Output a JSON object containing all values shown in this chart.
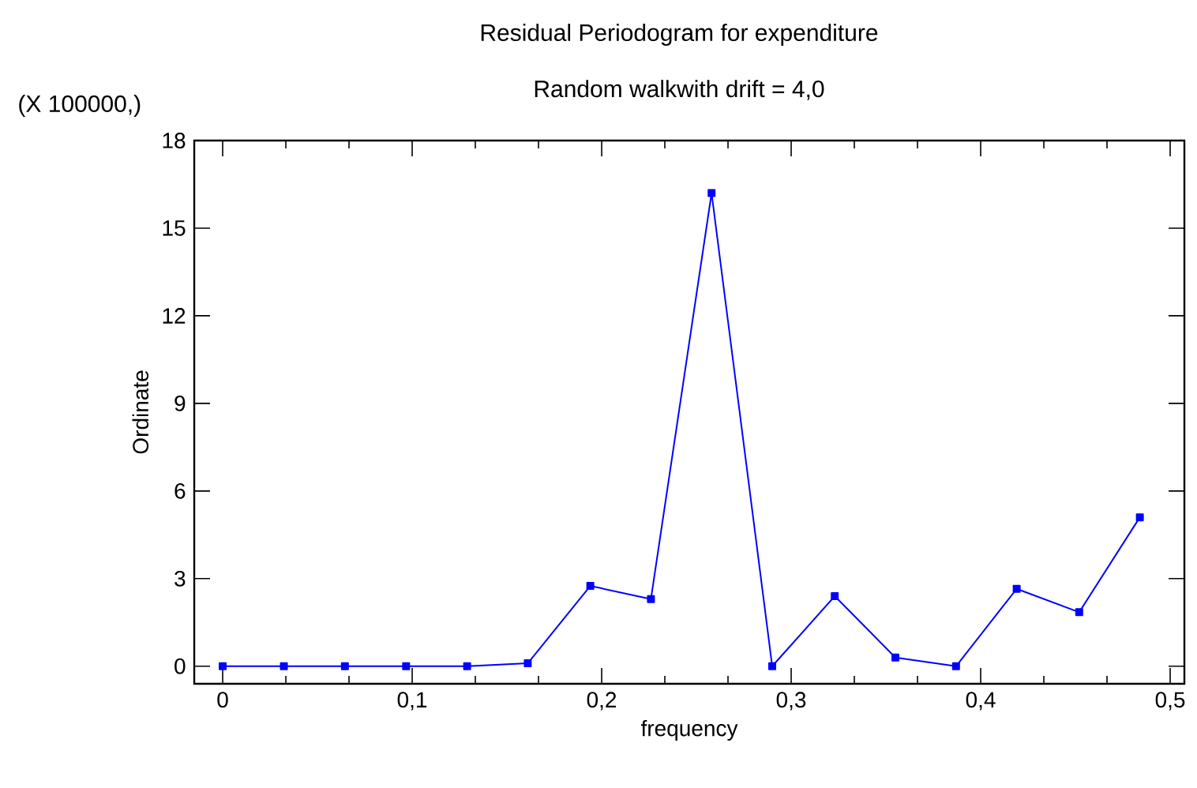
{
  "chart_data": {
    "type": "line",
    "title": "Residual Periodogram for expenditure",
    "subtitle": "Random walkwith drift = 4,0",
    "xlabel": "frequency",
    "ylabel": "Ordinate",
    "annotations": [
      "(X 100000,)"
    ],
    "x": [
      0,
      0.0323,
      0.0645,
      0.0968,
      0.129,
      0.161,
      0.194,
      0.226,
      0.258,
      0.29,
      0.323,
      0.355,
      0.387,
      0.419,
      0.452,
      0.484
    ],
    "series": [
      {
        "color": "#0000ff",
        "values": [
          0,
          0,
          0,
          0,
          0,
          0.1,
          2.75,
          2.3,
          16.2,
          0,
          2.4,
          0.3,
          0,
          2.65,
          1.85,
          5.1
        ]
      }
    ],
    "xlim": [
      -0.015,
      0.5075
    ],
    "ylim": [
      -0.6,
      18
    ],
    "xticks": [
      0,
      {
        "value": 0.1,
        "label": "0,1"
      },
      {
        "value": 0.2,
        "label": "0,2"
      },
      {
        "value": 0.3,
        "label": "0,3"
      },
      {
        "value": 0.4,
        "label": "0,4"
      },
      {
        "value": 0.5,
        "label": "0,5"
      }
    ],
    "yticks": [
      0,
      3,
      6,
      9,
      12,
      15,
      18
    ],
    "marker": "square",
    "line_style": "solid",
    "grid": false
  }
}
